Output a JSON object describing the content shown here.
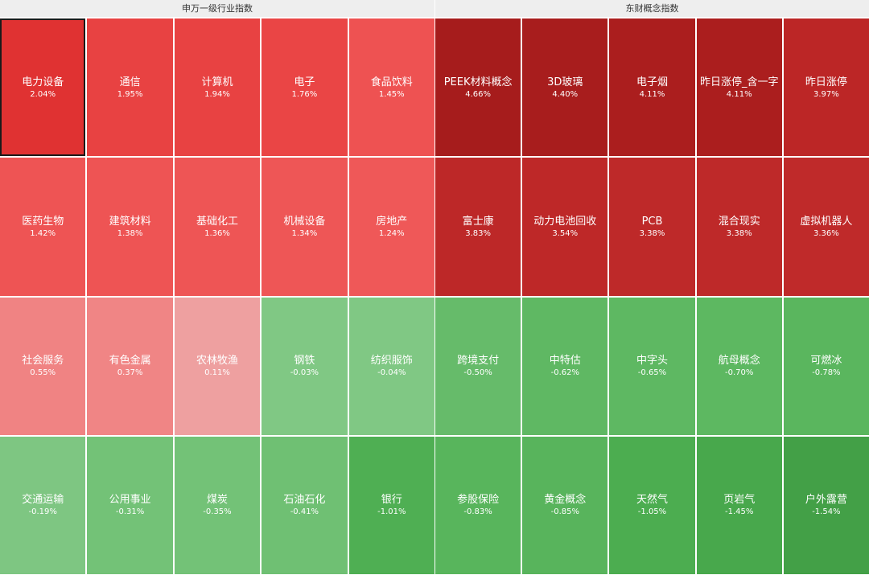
{
  "left_panel": {
    "title": "申万一级行业指数",
    "tiles": [
      {
        "name": "电力设备",
        "pct": "2.04%",
        "color": "#E03232",
        "selected": true
      },
      {
        "name": "通信",
        "pct": "1.95%",
        "color": "#E84242"
      },
      {
        "name": "计算机",
        "pct": "1.94%",
        "color": "#E84242"
      },
      {
        "name": "电子",
        "pct": "1.76%",
        "color": "#EA4545"
      },
      {
        "name": "食品饮料",
        "pct": "1.45%",
        "color": "#EE5252"
      },
      {
        "name": "医药生物",
        "pct": "1.42%",
        "color": "#EE5454"
      },
      {
        "name": "建筑材料",
        "pct": "1.38%",
        "color": "#EE5454"
      },
      {
        "name": "基础化工",
        "pct": "1.36%",
        "color": "#EE5555"
      },
      {
        "name": "机械设备",
        "pct": "1.34%",
        "color": "#EE5656"
      },
      {
        "name": "房地产",
        "pct": "1.24%",
        "color": "#EF5858"
      },
      {
        "name": "社会服务",
        "pct": "0.55%",
        "color": "#F08383"
      },
      {
        "name": "有色金属",
        "pct": "0.37%",
        "color": "#F08585"
      },
      {
        "name": "农林牧渔",
        "pct": "0.11%",
        "color": "#EEA0A0"
      },
      {
        "name": "钢铁",
        "pct": "-0.03%",
        "color": "#80C884"
      },
      {
        "name": "纺织服饰",
        "pct": "-0.04%",
        "color": "#80C884"
      },
      {
        "name": "交通运输",
        "pct": "-0.19%",
        "color": "#7EC682"
      },
      {
        "name": "公用事业",
        "pct": "-0.31%",
        "color": "#73C277"
      },
      {
        "name": "煤炭",
        "pct": "-0.35%",
        "color": "#73C277"
      },
      {
        "name": "石油石化",
        "pct": "-0.41%",
        "color": "#6FC073"
      },
      {
        "name": "银行",
        "pct": "-1.01%",
        "color": "#4FAF53"
      }
    ]
  },
  "right_panel": {
    "title": "东财概念指数",
    "tiles": [
      {
        "name": "PEEK材料概念",
        "pct": "4.66%",
        "color": "#A61C1C"
      },
      {
        "name": "3D玻璃",
        "pct": "4.40%",
        "color": "#A81D1D"
      },
      {
        "name": "电子烟",
        "pct": "4.11%",
        "color": "#AB1E1E"
      },
      {
        "name": "昨日涨停_含一字",
        "pct": "4.11%",
        "color": "#AB1E1E"
      },
      {
        "name": "昨日涨停",
        "pct": "3.97%",
        "color": "#BC2626"
      },
      {
        "name": "富士康",
        "pct": "3.83%",
        "color": "#BD2828"
      },
      {
        "name": "动力电池回收",
        "pct": "3.54%",
        "color": "#BE2828"
      },
      {
        "name": "PCB",
        "pct": "3.38%",
        "color": "#BE2929"
      },
      {
        "name": "混合现实",
        "pct": "3.38%",
        "color": "#BE2929"
      },
      {
        "name": "虚拟机器人",
        "pct": "3.36%",
        "color": "#BF2A2A"
      },
      {
        "name": "跨境支付",
        "pct": "-0.50%",
        "color": "#66BB6A"
      },
      {
        "name": "中特估",
        "pct": "-0.62%",
        "color": "#5FB863"
      },
      {
        "name": "中字头",
        "pct": "-0.65%",
        "color": "#5EB862"
      },
      {
        "name": "航母概念",
        "pct": "-0.70%",
        "color": "#5DB861"
      },
      {
        "name": "可燃冰",
        "pct": "-0.78%",
        "color": "#5AB65E"
      },
      {
        "name": "参股保险",
        "pct": "-0.83%",
        "color": "#58B55C"
      },
      {
        "name": "黄金概念",
        "pct": "-0.85%",
        "color": "#58B45C"
      },
      {
        "name": "天然气",
        "pct": "-1.05%",
        "color": "#4CAD50"
      },
      {
        "name": "页岩气",
        "pct": "-1.45%",
        "color": "#48A84C"
      },
      {
        "name": "户外露营",
        "pct": "-1.54%",
        "color": "#43A047"
      }
    ]
  }
}
